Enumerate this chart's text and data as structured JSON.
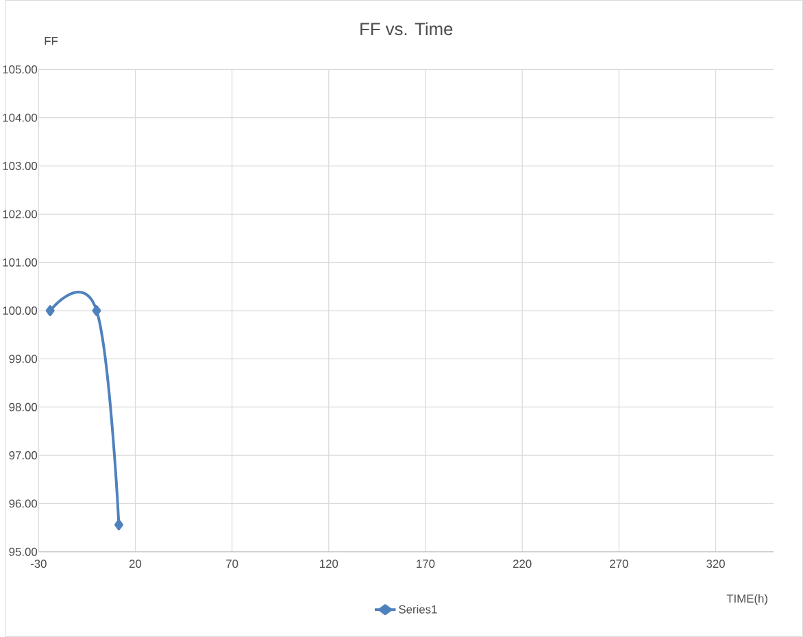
{
  "chart_data": {
    "type": "line",
    "title": "FF vs. Time",
    "xlabel": "TIME(h)",
    "ylabel": "FF",
    "x": [
      -24,
      0,
      11.5
    ],
    "series": [
      {
        "name": "Series1",
        "color": "#4f81bd",
        "values": [
          100.0,
          100.0,
          95.56
        ]
      }
    ],
    "xlim": [
      -30,
      350
    ],
    "xticks": [
      -30,
      20,
      70,
      120,
      170,
      220,
      270,
      320
    ],
    "ylim": [
      95,
      105
    ],
    "yticks": [
      {
        "value": 95,
        "label": "95.00"
      },
      {
        "value": 96,
        "label": "96.00"
      },
      {
        "value": 97,
        "label": "97.00"
      },
      {
        "value": 98,
        "label": "98.00"
      },
      {
        "value": 99,
        "label": "99.00"
      },
      {
        "value": 100,
        "label": "100.00"
      },
      {
        "value": 101,
        "label": "101.00"
      },
      {
        "value": 102,
        "label": "102.00"
      },
      {
        "value": 103,
        "label": "103.00"
      },
      {
        "value": 104,
        "label": "104.00"
      },
      {
        "value": 105,
        "label": "105.00"
      }
    ],
    "grid": true,
    "legend": "bottom",
    "marker": "diamond",
    "line_style": "solid"
  }
}
